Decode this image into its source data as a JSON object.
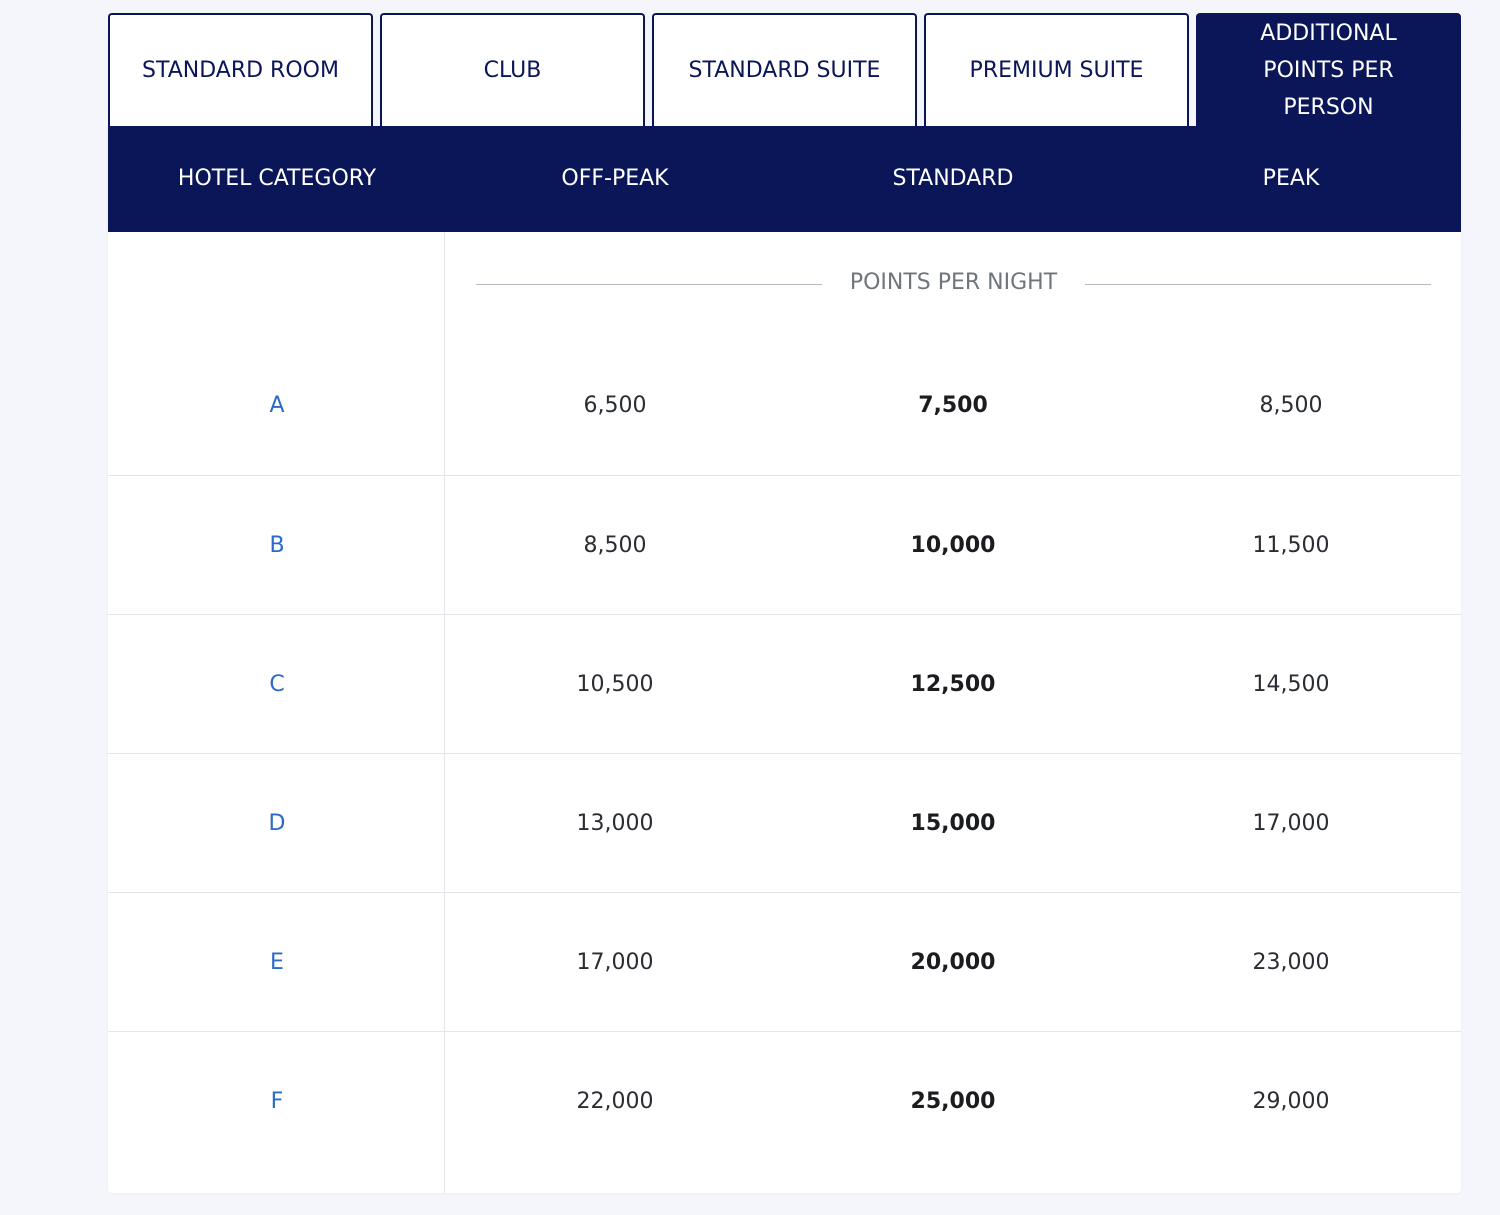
{
  "tabs": [
    {
      "label": "STANDARD ROOM",
      "active": false
    },
    {
      "label": "CLUB",
      "active": false
    },
    {
      "label": "STANDARD SUITE",
      "active": false
    },
    {
      "label": "PREMIUM SUITE",
      "active": false
    },
    {
      "label": "ADDITIONAL POINTS PER PERSON",
      "active": true
    }
  ],
  "colors": {
    "navy": "#0a1657",
    "category_blue": "#2a6bc9",
    "divider": "#e2e5ea",
    "page_bg": "#f4f6fb"
  },
  "table": {
    "headers": [
      "HOTEL CATEGORY",
      "OFF-PEAK",
      "STANDARD",
      "PEAK"
    ],
    "subheader": "POINTS PER NIGHT",
    "rows": [
      {
        "category": "A",
        "off_peak": "6,500",
        "standard": "7,500",
        "peak": "8,500"
      },
      {
        "category": "B",
        "off_peak": "8,500",
        "standard": "10,000",
        "peak": "11,500"
      },
      {
        "category": "C",
        "off_peak": "10,500",
        "standard": "12,500",
        "peak": "14,500"
      },
      {
        "category": "D",
        "off_peak": "13,000",
        "standard": "15,000",
        "peak": "17,000"
      },
      {
        "category": "E",
        "off_peak": "17,000",
        "standard": "20,000",
        "peak": "23,000"
      },
      {
        "category": "F",
        "off_peak": "22,000",
        "standard": "25,000",
        "peak": "29,000"
      }
    ]
  }
}
